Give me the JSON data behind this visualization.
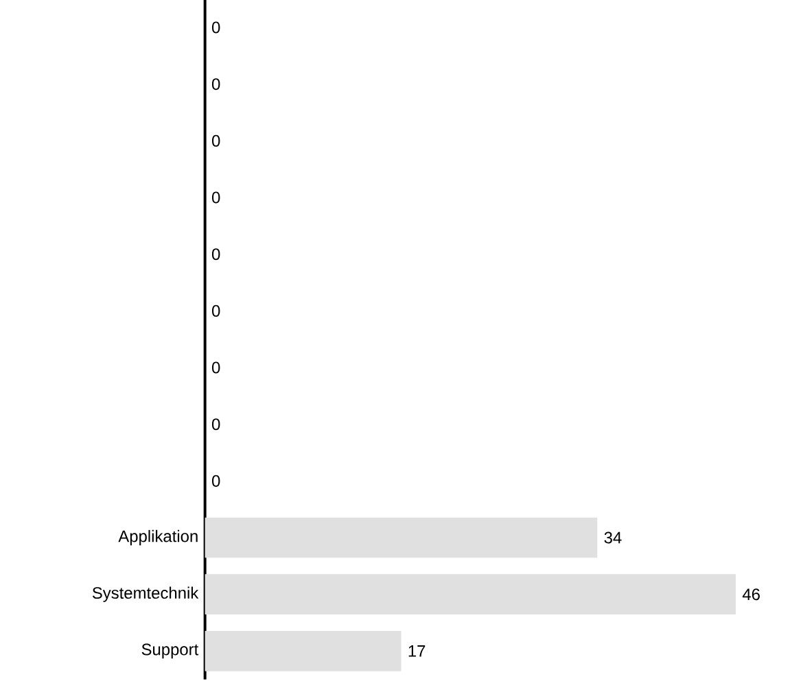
{
  "chart_data": {
    "type": "bar",
    "orientation": "horizontal",
    "categories": [
      null,
      null,
      null,
      null,
      null,
      null,
      null,
      null,
      null,
      "Applikation",
      "Systemtechnik",
      "Support"
    ],
    "values": [
      0,
      0,
      0,
      0,
      0,
      0,
      0,
      0,
      0,
      34,
      46,
      17
    ],
    "color": "#e0e0e0",
    "data_labels": true
  }
}
